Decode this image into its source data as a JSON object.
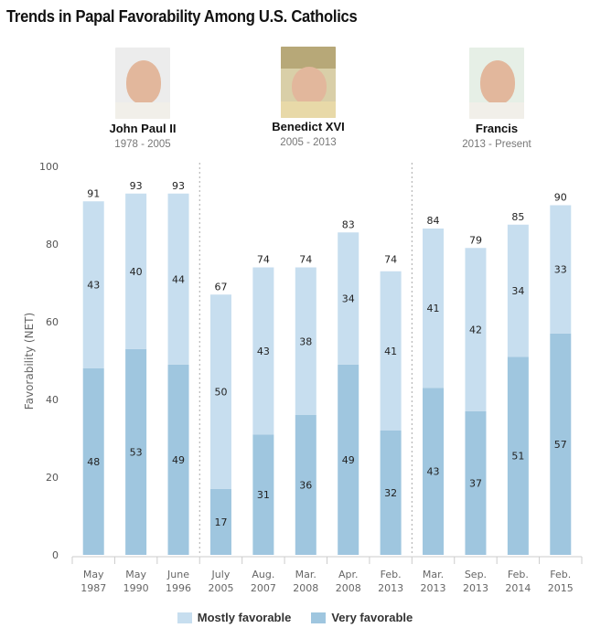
{
  "title": "Trends in Papal Favorability Among U.S. Catholics",
  "popes": [
    {
      "name": "John Paul II",
      "years": "1978 - 2005"
    },
    {
      "name": "Benedict XVI",
      "years": "2005 - 2013"
    },
    {
      "name": "Francis",
      "years": "2013 - Present"
    }
  ],
  "chart_data": {
    "type": "bar",
    "stacked": true,
    "ylabel": "Favorability (NET)",
    "ylim": [
      0,
      100
    ],
    "yticks": [
      0,
      20,
      40,
      60,
      80,
      100
    ],
    "categories": [
      [
        "May",
        "1987"
      ],
      [
        "May",
        "1990"
      ],
      [
        "June",
        "1996"
      ],
      [
        "July",
        "2005"
      ],
      [
        "Aug.",
        "2007"
      ],
      [
        "Mar.",
        "2008"
      ],
      [
        "Apr.",
        "2008"
      ],
      [
        "Feb.",
        "2013"
      ],
      [
        "Mar.",
        "2013"
      ],
      [
        "Sep.",
        "2013"
      ],
      [
        "Feb.",
        "2014"
      ],
      [
        "Feb.",
        "2015"
      ]
    ],
    "series": [
      {
        "name": "Very favorable",
        "color": "#9fc6df",
        "values": [
          48,
          53,
          49,
          17,
          31,
          36,
          49,
          32,
          43,
          37,
          51,
          57
        ]
      },
      {
        "name": "Mostly favorable",
        "color": "#c7deef",
        "values": [
          43,
          40,
          44,
          50,
          43,
          38,
          34,
          41,
          41,
          42,
          34,
          33
        ]
      }
    ],
    "totals": [
      91,
      93,
      93,
      67,
      74,
      74,
      83,
      74,
      84,
      79,
      85,
      90
    ],
    "era_dividers_after": [
      "June 1996",
      "Feb. 2013"
    ],
    "legend": {
      "placement": "bottom",
      "items": [
        "Mostly favorable",
        "Very favorable"
      ]
    }
  }
}
